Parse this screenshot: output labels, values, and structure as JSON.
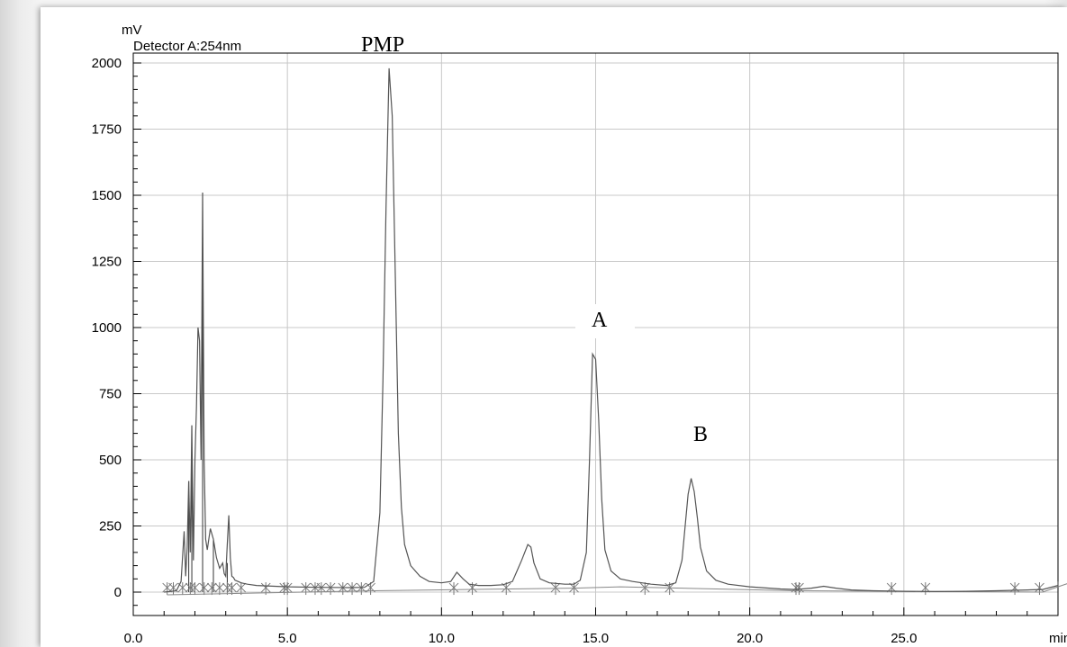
{
  "chart_data": {
    "type": "line",
    "ylabel_unit": "mV",
    "xlabel_unit": "min",
    "detector": "Detector A:254nm",
    "xlim": [
      0,
      30.5
    ],
    "ylim": [
      -100,
      2050
    ],
    "x_ticks": [
      0,
      5,
      10,
      15,
      20,
      25
    ],
    "x_tick_labels": [
      "0.0",
      "5.0",
      "10.0",
      "15.0",
      "20.0",
      "25.0"
    ],
    "y_ticks": [
      0,
      250,
      500,
      750,
      1000,
      1250,
      1500,
      1750,
      2000
    ],
    "y_tick_labels": [
      "0",
      "250",
      "500",
      "750",
      "1000",
      "1250",
      "1500",
      "1750",
      "2000"
    ],
    "grid": true,
    "series": [
      {
        "color": "#555555",
        "x": [
          1.0,
          1.4,
          1.55,
          1.65,
          1.7,
          1.75,
          1.8,
          1.85,
          1.9,
          1.95,
          2.0,
          2.05,
          2.1,
          2.15,
          2.2,
          2.25,
          2.3,
          2.35,
          2.4,
          2.45,
          2.5,
          2.6,
          2.7,
          2.8,
          2.9,
          2.95,
          3.0,
          3.05,
          3.1,
          3.15,
          3.2,
          3.25,
          3.3,
          3.4,
          3.5,
          3.7,
          4.0,
          5.0,
          6.0,
          7.0,
          7.5,
          7.8,
          8.0,
          8.1,
          8.2,
          8.3,
          8.4,
          8.5,
          8.6,
          8.7,
          8.8,
          9.0,
          9.3,
          9.6,
          10.0,
          10.3,
          10.5,
          10.7,
          10.9,
          11.2,
          11.6,
          12.0,
          12.3,
          12.6,
          12.8,
          12.9,
          13.0,
          13.2,
          13.5,
          14.0,
          14.3,
          14.5,
          14.7,
          14.8,
          14.9,
          15.0,
          15.1,
          15.2,
          15.3,
          15.5,
          15.8,
          16.2,
          16.8,
          17.3,
          17.6,
          17.8,
          18.0,
          18.1,
          18.2,
          18.3,
          18.4,
          18.6,
          18.9,
          19.3,
          20.0,
          21.0,
          21.5,
          22.0,
          22.4,
          22.8,
          23.3,
          24.0,
          25.0,
          26.0,
          27.0,
          28.0,
          29.0,
          29.5,
          30.0,
          30.5
        ],
        "y": [
          0,
          5,
          40,
          230,
          60,
          170,
          420,
          150,
          630,
          120,
          500,
          700,
          1000,
          950,
          500,
          1510,
          500,
          200,
          160,
          200,
          240,
          200,
          130,
          90,
          110,
          70,
          60,
          180,
          290,
          130,
          60,
          55,
          45,
          40,
          35,
          30,
          25,
          20,
          18,
          17,
          18,
          40,
          300,
          800,
          1450,
          1980,
          1800,
          1200,
          600,
          320,
          180,
          100,
          60,
          40,
          35,
          40,
          75,
          50,
          30,
          25,
          25,
          28,
          40,
          120,
          180,
          170,
          110,
          50,
          35,
          30,
          30,
          45,
          150,
          500,
          900,
          880,
          650,
          350,
          160,
          80,
          50,
          40,
          30,
          25,
          35,
          120,
          370,
          430,
          380,
          280,
          170,
          80,
          45,
          30,
          20,
          12,
          10,
          15,
          22,
          15,
          8,
          5,
          3,
          2,
          3,
          5,
          8,
          10,
          25,
          40
        ]
      }
    ],
    "annotations": [
      "PMP",
      "A",
      "B"
    ]
  }
}
